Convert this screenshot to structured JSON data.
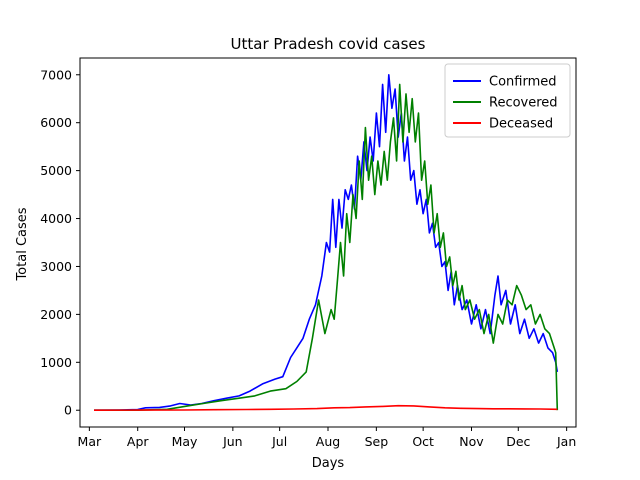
{
  "chart_data": {
    "type": "line",
    "title": "Uttar Pradesh covid cases",
    "xlabel": "Days",
    "ylabel": "Total Cases",
    "xlim": [
      "2020-02-24",
      "2021-01-07"
    ],
    "ylim": [
      -350,
      7350
    ],
    "grid": false,
    "legend_position": "top-right",
    "x_ticks": [
      {
        "date": "2020-03-01",
        "label": "Mar"
      },
      {
        "date": "2020-04-01",
        "label": "Apr"
      },
      {
        "date": "2020-05-01",
        "label": "May"
      },
      {
        "date": "2020-06-01",
        "label": "Jun"
      },
      {
        "date": "2020-07-01",
        "label": "Jul"
      },
      {
        "date": "2020-08-01",
        "label": "Aug"
      },
      {
        "date": "2020-09-01",
        "label": "Sep"
      },
      {
        "date": "2020-10-01",
        "label": "Oct"
      },
      {
        "date": "2020-11-01",
        "label": "Nov"
      },
      {
        "date": "2020-12-01",
        "label": "Dec"
      },
      {
        "date": "2021-01-01",
        "label": "Jan"
      }
    ],
    "y_ticks": [
      0,
      1000,
      2000,
      3000,
      4000,
      5000,
      6000,
      7000
    ],
    "series": [
      {
        "name": "Confirmed",
        "color": "#0000ff",
        "points": [
          [
            "2020-03-04",
            0
          ],
          [
            "2020-03-20",
            5
          ],
          [
            "2020-04-01",
            15
          ],
          [
            "2020-04-06",
            50
          ],
          [
            "2020-04-15",
            60
          ],
          [
            "2020-04-22",
            90
          ],
          [
            "2020-04-28",
            140
          ],
          [
            "2020-05-05",
            110
          ],
          [
            "2020-05-12",
            140
          ],
          [
            "2020-05-20",
            200
          ],
          [
            "2020-05-28",
            250
          ],
          [
            "2020-06-05",
            300
          ],
          [
            "2020-06-12",
            400
          ],
          [
            "2020-06-20",
            550
          ],
          [
            "2020-06-28",
            650
          ],
          [
            "2020-07-03",
            700
          ],
          [
            "2020-07-08",
            1100
          ],
          [
            "2020-07-12",
            1300
          ],
          [
            "2020-07-16",
            1500
          ],
          [
            "2020-07-20",
            1900
          ],
          [
            "2020-07-24",
            2200
          ],
          [
            "2020-07-28",
            2800
          ],
          [
            "2020-07-31",
            3500
          ],
          [
            "2020-08-02",
            3300
          ],
          [
            "2020-08-04",
            4400
          ],
          [
            "2020-08-06",
            3400
          ],
          [
            "2020-08-08",
            4400
          ],
          [
            "2020-08-10",
            3800
          ],
          [
            "2020-08-12",
            4600
          ],
          [
            "2020-08-14",
            4400
          ],
          [
            "2020-08-16",
            4700
          ],
          [
            "2020-08-18",
            4200
          ],
          [
            "2020-08-20",
            5300
          ],
          [
            "2020-08-22",
            4800
          ],
          [
            "2020-08-24",
            5600
          ],
          [
            "2020-08-26",
            5000
          ],
          [
            "2020-08-28",
            5700
          ],
          [
            "2020-08-30",
            5200
          ],
          [
            "2020-09-01",
            6200
          ],
          [
            "2020-09-03",
            5500
          ],
          [
            "2020-09-05",
            6800
          ],
          [
            "2020-09-07",
            5800
          ],
          [
            "2020-09-09",
            7000
          ],
          [
            "2020-09-11",
            6300
          ],
          [
            "2020-09-13",
            6700
          ],
          [
            "2020-09-15",
            5700
          ],
          [
            "2020-09-17",
            6200
          ],
          [
            "2020-09-19",
            5200
          ],
          [
            "2020-09-21",
            5700
          ],
          [
            "2020-09-23",
            4800
          ],
          [
            "2020-09-25",
            5000
          ],
          [
            "2020-09-27",
            4300
          ],
          [
            "2020-09-29",
            4600
          ],
          [
            "2020-10-01",
            4100
          ],
          [
            "2020-10-03",
            4400
          ],
          [
            "2020-10-05",
            3700
          ],
          [
            "2020-10-07",
            3900
          ],
          [
            "2020-10-09",
            3400
          ],
          [
            "2020-10-11",
            3500
          ],
          [
            "2020-10-13",
            3000
          ],
          [
            "2020-10-15",
            3100
          ],
          [
            "2020-10-17",
            2500
          ],
          [
            "2020-10-19",
            2900
          ],
          [
            "2020-10-21",
            2200
          ],
          [
            "2020-10-23",
            2600
          ],
          [
            "2020-10-26",
            2100
          ],
          [
            "2020-10-29",
            2300
          ],
          [
            "2020-11-01",
            1800
          ],
          [
            "2020-11-04",
            2200
          ],
          [
            "2020-11-07",
            1700
          ],
          [
            "2020-11-10",
            2100
          ],
          [
            "2020-11-13",
            1600
          ],
          [
            "2020-11-16",
            2400
          ],
          [
            "2020-11-18",
            2800
          ],
          [
            "2020-11-20",
            2200
          ],
          [
            "2020-11-23",
            2500
          ],
          [
            "2020-11-26",
            1800
          ],
          [
            "2020-11-29",
            2200
          ],
          [
            "2020-12-02",
            1600
          ],
          [
            "2020-12-05",
            1900
          ],
          [
            "2020-12-08",
            1500
          ],
          [
            "2020-12-11",
            1700
          ],
          [
            "2020-12-14",
            1400
          ],
          [
            "2020-12-17",
            1600
          ],
          [
            "2020-12-20",
            1300
          ],
          [
            "2020-12-23",
            1200
          ],
          [
            "2020-12-25",
            1000
          ],
          [
            "2020-12-26",
            800
          ]
        ]
      },
      {
        "name": "Recovered",
        "color": "#008000",
        "points": [
          [
            "2020-03-04",
            0
          ],
          [
            "2020-04-01",
            0
          ],
          [
            "2020-04-20",
            20
          ],
          [
            "2020-05-05",
            100
          ],
          [
            "2020-05-15",
            150
          ],
          [
            "2020-05-25",
            200
          ],
          [
            "2020-06-05",
            250
          ],
          [
            "2020-06-15",
            300
          ],
          [
            "2020-06-25",
            400
          ],
          [
            "2020-07-05",
            450
          ],
          [
            "2020-07-12",
            600
          ],
          [
            "2020-07-18",
            800
          ],
          [
            "2020-07-22",
            1500
          ],
          [
            "2020-07-26",
            2300
          ],
          [
            "2020-07-30",
            1600
          ],
          [
            "2020-08-03",
            2100
          ],
          [
            "2020-08-05",
            1900
          ],
          [
            "2020-08-07",
            2700
          ],
          [
            "2020-08-09",
            3500
          ],
          [
            "2020-08-11",
            2800
          ],
          [
            "2020-08-13",
            4100
          ],
          [
            "2020-08-15",
            3500
          ],
          [
            "2020-08-17",
            4500
          ],
          [
            "2020-08-19",
            4000
          ],
          [
            "2020-08-21",
            5200
          ],
          [
            "2020-08-23",
            4400
          ],
          [
            "2020-08-25",
            5900
          ],
          [
            "2020-08-27",
            4800
          ],
          [
            "2020-08-29",
            5300
          ],
          [
            "2020-08-31",
            4500
          ],
          [
            "2020-09-02",
            5200
          ],
          [
            "2020-09-04",
            4700
          ],
          [
            "2020-09-06",
            5400
          ],
          [
            "2020-09-08",
            4800
          ],
          [
            "2020-09-10",
            5600
          ],
          [
            "2020-09-12",
            6100
          ],
          [
            "2020-09-14",
            5200
          ],
          [
            "2020-09-16",
            6800
          ],
          [
            "2020-09-18",
            5600
          ],
          [
            "2020-09-20",
            6600
          ],
          [
            "2020-09-22",
            5800
          ],
          [
            "2020-09-24",
            6500
          ],
          [
            "2020-09-26",
            5600
          ],
          [
            "2020-09-28",
            6200
          ],
          [
            "2020-09-30",
            4800
          ],
          [
            "2020-10-02",
            5200
          ],
          [
            "2020-10-04",
            4300
          ],
          [
            "2020-10-06",
            4700
          ],
          [
            "2020-10-08",
            3700
          ],
          [
            "2020-10-10",
            4100
          ],
          [
            "2020-10-12",
            3400
          ],
          [
            "2020-10-14",
            3700
          ],
          [
            "2020-10-16",
            3000
          ],
          [
            "2020-10-18",
            3200
          ],
          [
            "2020-10-20",
            2600
          ],
          [
            "2020-10-22",
            2900
          ],
          [
            "2020-10-24",
            2300
          ],
          [
            "2020-10-26",
            2600
          ],
          [
            "2020-10-28",
            2100
          ],
          [
            "2020-10-31",
            2300
          ],
          [
            "2020-11-03",
            1900
          ],
          [
            "2020-11-06",
            2100
          ],
          [
            "2020-11-09",
            1600
          ],
          [
            "2020-11-12",
            2000
          ],
          [
            "2020-11-15",
            1400
          ],
          [
            "2020-11-18",
            2000
          ],
          [
            "2020-11-21",
            1800
          ],
          [
            "2020-11-24",
            2300
          ],
          [
            "2020-11-27",
            2200
          ],
          [
            "2020-11-30",
            2600
          ],
          [
            "2020-12-03",
            2400
          ],
          [
            "2020-12-06",
            2100
          ],
          [
            "2020-12-09",
            2200
          ],
          [
            "2020-12-12",
            1800
          ],
          [
            "2020-12-15",
            2000
          ],
          [
            "2020-12-18",
            1700
          ],
          [
            "2020-12-21",
            1600
          ],
          [
            "2020-12-24",
            1300
          ],
          [
            "2020-12-25",
            1200
          ],
          [
            "2020-12-26",
            0
          ]
        ]
      },
      {
        "name": "Deceased",
        "color": "#ff0000",
        "points": [
          [
            "2020-03-04",
            0
          ],
          [
            "2020-04-01",
            2
          ],
          [
            "2020-05-01",
            5
          ],
          [
            "2020-05-20",
            10
          ],
          [
            "2020-06-10",
            15
          ],
          [
            "2020-06-25",
            20
          ],
          [
            "2020-07-10",
            25
          ],
          [
            "2020-07-25",
            35
          ],
          [
            "2020-08-05",
            50
          ],
          [
            "2020-08-15",
            55
          ],
          [
            "2020-08-25",
            70
          ],
          [
            "2020-09-05",
            80
          ],
          [
            "2020-09-15",
            95
          ],
          [
            "2020-09-25",
            90
          ],
          [
            "2020-10-05",
            70
          ],
          [
            "2020-10-15",
            50
          ],
          [
            "2020-10-25",
            40
          ],
          [
            "2020-11-05",
            35
          ],
          [
            "2020-11-15",
            30
          ],
          [
            "2020-11-25",
            30
          ],
          [
            "2020-12-05",
            28
          ],
          [
            "2020-12-15",
            25
          ],
          [
            "2020-12-26",
            20
          ]
        ]
      }
    ]
  }
}
